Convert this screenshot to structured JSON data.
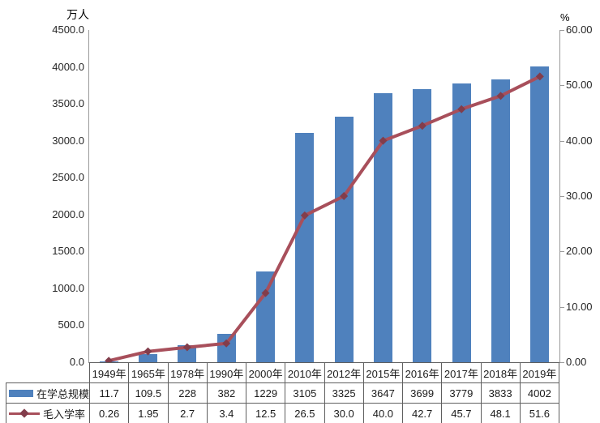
{
  "chart_data": {
    "type": "bar",
    "subtype": "bar-line-combo",
    "title": "",
    "categories": [
      "1949年",
      "1965年",
      "1978年",
      "1990年",
      "2000年",
      "2010年",
      "2012年",
      "2015年",
      "2016年",
      "2017年",
      "2018年",
      "2019年"
    ],
    "series": [
      {
        "name": "在学总规模",
        "chart_type": "bar",
        "axis": "left",
        "color": "#4F81BD",
        "values": [
          11.7,
          109.5,
          228,
          382,
          1229,
          3105,
          3325,
          3647,
          3699,
          3779,
          3833,
          4002
        ],
        "display_values": [
          "11.7",
          "109.5",
          "228",
          "382",
          "1229",
          "3105",
          "3325",
          "3647",
          "3699",
          "3779",
          "3833",
          "4002"
        ]
      },
      {
        "name": "毛入学率",
        "chart_type": "line",
        "axis": "right",
        "color": "#A84F5B",
        "marker": "diamond",
        "marker_color": "#823D4B",
        "values": [
          0.26,
          1.95,
          2.7,
          3.4,
          12.5,
          26.5,
          30.0,
          40.0,
          42.7,
          45.7,
          48.1,
          51.6
        ],
        "display_values": [
          "0.26",
          "1.95",
          "2.7",
          "3.4",
          "12.5",
          "26.5",
          "30.0",
          "40.0",
          "42.7",
          "45.7",
          "48.1",
          "51.6"
        ]
      }
    ],
    "left_axis": {
      "title": "万人",
      "min": 0,
      "max": 4500,
      "step": 500,
      "tick_labels": [
        "0.0",
        "500.0",
        "1000.0",
        "1500.0",
        "2000.0",
        "2500.0",
        "3000.0",
        "3500.0",
        "4000.0",
        "4500.0"
      ]
    },
    "right_axis": {
      "title": "%",
      "min": 0,
      "max": 60,
      "step": 10,
      "tick_labels": [
        "0.00",
        "10.00",
        "20.00",
        "30.00",
        "40.00",
        "50.00",
        "60.00"
      ]
    },
    "grid": false,
    "legend_position": "data-table-left",
    "data_table_shown": true
  }
}
